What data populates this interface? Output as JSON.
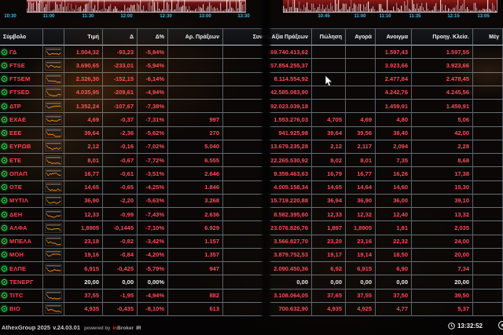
{
  "left_chart": {
    "type": "volume",
    "time_labels": [
      "10:30",
      "11:00",
      "11:30",
      "12:00",
      "12:30",
      "13:00",
      "13:30"
    ]
  },
  "right_chart": {
    "type": "volume",
    "time_labels": [
      "10:45",
      "11:00",
      "11:10",
      "11:35",
      "12:15",
      "13:05"
    ]
  },
  "table": {
    "headers": {
      "symbol": "Σύμβολο",
      "chart": "",
      "price": "Τιμή",
      "chg": "Δ",
      "chg_pct": "Δ%",
      "trades": "Αρ. Πράξεων",
      "value": "Συνολ. Αξία Πράξεων",
      "ask": "Πώληση",
      "bid": "Αγορά",
      "open": "Ανοιγμα",
      "prev_close": "Προηγ. Κλείσ.",
      "max": "Μέγ"
    },
    "rows": [
      {
        "symbol": "ΓΔ",
        "price": "1.504,32",
        "chg": "-93,23",
        "chg_pct": "-5,84%",
        "trades": "",
        "value": "169.740.413,62",
        "ask": "",
        "bid": "",
        "open": "1.597,43",
        "prev_close": "1.597,55",
        "max": "",
        "state": "down",
        "spark": true
      },
      {
        "symbol": "FTSE",
        "price": "3.690,65",
        "chg": "-233,01",
        "chg_pct": "-5,94%",
        "trades": "",
        "value": "157.854.255,37",
        "ask": "",
        "bid": "",
        "open": "3.923,66",
        "prev_close": "3.923,66",
        "max": "",
        "state": "down",
        "spark": true
      },
      {
        "symbol": "FTSEM",
        "price": "2.326,30",
        "chg": "-152,15",
        "chg_pct": "-6,14%",
        "trades": "",
        "value": "8.114.554,92",
        "ask": "",
        "bid": "",
        "open": "2.477,84",
        "prev_close": "2.478,45",
        "max": "",
        "state": "down",
        "spark": true
      },
      {
        "symbol": "FTSED",
        "price": "4.035,95",
        "chg": "-209,61",
        "chg_pct": "-4,94%",
        "trades": "",
        "value": "42.585.083,90",
        "ask": "",
        "bid": "",
        "open": "4.242,76",
        "prev_close": "4.245,56",
        "max": "",
        "state": "down",
        "spark": true
      },
      {
        "symbol": "ΔΤΡ",
        "price": "1.352,24",
        "chg": "-107,67",
        "chg_pct": "-7,38%",
        "trades": "",
        "value": "92.023.039,18",
        "ask": "",
        "bid": "",
        "open": "1.459,91",
        "prev_close": "1.459,91",
        "max": "",
        "state": "down",
        "spark": true
      },
      {
        "symbol": "ΕΧΑΕ",
        "price": "4,69",
        "chg": "-0,37",
        "chg_pct": "-7,31%",
        "trades": "997",
        "value": "1.553.276,03",
        "ask": "4,705",
        "bid": "4,69",
        "open": "4,80",
        "prev_close": "5,06",
        "max": "",
        "state": "down",
        "spark": true
      },
      {
        "symbol": "ΕΕΕ",
        "price": "39,64",
        "chg": "-2,36",
        "chg_pct": "-5,62%",
        "trades": "270",
        "value": "941.925,98",
        "ask": "39,64",
        "bid": "39,56",
        "open": "38,40",
        "prev_close": "42,00",
        "max": "",
        "state": "down",
        "spark": true
      },
      {
        "symbol": "ΕΥΡΩΒ",
        "price": "2,12",
        "chg": "-0,16",
        "chg_pct": "-7,02%",
        "trades": "5.040",
        "value": "13.679.235,28",
        "ask": "2,12",
        "bid": "2,117",
        "open": "2,094",
        "prev_close": "2,28",
        "max": "",
        "state": "down",
        "spark": true
      },
      {
        "symbol": "ΕΤΕ",
        "price": "8,01",
        "chg": "-0,67",
        "chg_pct": "-7,72%",
        "trades": "6.555",
        "value": "22.265.530,92",
        "ask": "8,02",
        "bid": "8,01",
        "open": "7,35",
        "prev_close": "8,68",
        "max": "",
        "state": "down",
        "spark": true
      },
      {
        "symbol": "ΟΠΑΠ",
        "price": "16,77",
        "chg": "-0,61",
        "chg_pct": "-3,51%",
        "trades": "2.646",
        "value": "9.359.463,63",
        "ask": "16,79",
        "bid": "16,77",
        "open": "16,26",
        "prev_close": "17,38",
        "max": "",
        "state": "down",
        "spark": true
      },
      {
        "symbol": "ΟΤΕ",
        "price": "14,65",
        "chg": "-0,65",
        "chg_pct": "-4,25%",
        "trades": "1.846",
        "value": "4.005.158,34",
        "ask": "14,65",
        "bid": "14,64",
        "open": "14,60",
        "prev_close": "15,30",
        "max": "",
        "state": "down",
        "spark": true
      },
      {
        "symbol": "ΜΥΤΙΛ",
        "price": "36,90",
        "chg": "-2,20",
        "chg_pct": "-5,63%",
        "trades": "3.268",
        "value": "15.719.220,88",
        "ask": "36,94",
        "bid": "36,90",
        "open": "36,00",
        "prev_close": "39,10",
        "max": "",
        "state": "down",
        "spark": true
      },
      {
        "symbol": "ΔΕΗ",
        "price": "12,33",
        "chg": "-0,99",
        "chg_pct": "-7,43%",
        "trades": "2.636",
        "value": "8.582.395,60",
        "ask": "12,33",
        "bid": "12,32",
        "open": "12,40",
        "prev_close": "13,32",
        "max": "",
        "state": "down",
        "spark": true
      },
      {
        "symbol": "ΑΛΦΑ",
        "price": "1,8905",
        "chg": "-0,1445",
        "chg_pct": "-7,10%",
        "trades": "6.929",
        "value": "23.076.826,76",
        "ask": "1,897",
        "bid": "1,8905",
        "open": "1,81",
        "prev_close": "2,035",
        "max": "",
        "state": "down",
        "spark": true
      },
      {
        "symbol": "ΜΠΕΛΑ",
        "price": "23,18",
        "chg": "-0,82",
        "chg_pct": "-3,42%",
        "trades": "1.157",
        "value": "3.566.827,70",
        "ask": "23,20",
        "bid": "23,16",
        "open": "22,32",
        "prev_close": "24,00",
        "max": "",
        "state": "down",
        "spark": true
      },
      {
        "symbol": "ΜΟΗ",
        "price": "19,16",
        "chg": "-0,84",
        "chg_pct": "-4,20%",
        "trades": "1.357",
        "value": "3.879.752,53",
        "ask": "19,17",
        "bid": "19,14",
        "open": "18,50",
        "prev_close": "20,00",
        "max": "",
        "state": "down",
        "spark": true
      },
      {
        "symbol": "ΕΛΠΕ",
        "price": "6,915",
        "chg": "-0,425",
        "chg_pct": "-5,79%",
        "trades": "947",
        "value": "2.090.450,36",
        "ask": "6,92",
        "bid": "6,915",
        "open": "6,90",
        "prev_close": "7,34",
        "max": "",
        "state": "down",
        "spark": true
      },
      {
        "symbol": "ΤΕΝΕΡΓ",
        "price": "20,00",
        "chg": "0,00",
        "chg_pct": "0,00%",
        "trades": "",
        "value": "0,00",
        "ask": "0,00",
        "bid": "0,00",
        "open": "0,00",
        "prev_close": "20,00",
        "max": "",
        "state": "flat",
        "spark": false
      },
      {
        "symbol": "ΤΙΤC",
        "price": "37,55",
        "chg": "-1,95",
        "chg_pct": "-4,94%",
        "trades": "882",
        "value": "3.108.064,05",
        "ask": "37,65",
        "bid": "37,55",
        "open": "37,50",
        "prev_close": "39,50",
        "max": "",
        "state": "down",
        "spark": true
      },
      {
        "symbol": "ΒΙΟ",
        "price": "4,935",
        "chg": "-0,435",
        "chg_pct": "-8,10%",
        "trades": "613",
        "value": "700.632,90",
        "ask": "4,935",
        "bid": "4,925",
        "open": "4,77",
        "prev_close": "5,37",
        "max": "",
        "state": "down",
        "spark": true
      }
    ]
  },
  "footer": {
    "app": "AthexGroup 2025",
    "version": "v.24.03.01",
    "powered": "powered by",
    "brand_red": "in",
    "brand_gray": "Broker",
    "brand_suffix": "IR",
    "time": "13:32:52"
  },
  "colors": {
    "down_text": "#ff4b5c",
    "flat_text": "#eef0f2",
    "spark_line": "#ff9a28",
    "axis_label": "#49b8e8",
    "chart_bg": "#7a1414",
    "status_green": "#2ee05a",
    "grid_line": "#aebfca"
  }
}
